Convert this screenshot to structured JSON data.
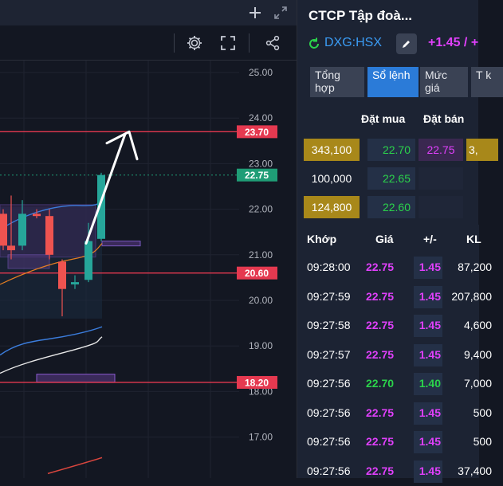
{
  "chart": {
    "price_axis_labels": [
      "25.00",
      "24.00",
      "23.00",
      "22.00",
      "21.00",
      "20.00",
      "19.00",
      "18.00",
      "17.00"
    ],
    "resistance_label": "23.70",
    "current_price_label": "22.75",
    "support_label": "20.60",
    "lower_support_label": "18.20",
    "colors": {
      "up": "#26a69a",
      "down": "#ef5350",
      "line_red": "#e53950",
      "current": "#1f9d76",
      "band": "#3b7ddd"
    },
    "icons": [
      "plus-icon",
      "expand-icon",
      "gear-icon",
      "fullscreen-icon",
      "share-icon"
    ]
  },
  "stock": {
    "name": "CTCP Tập đoà...",
    "ticker": "DXG:HSX",
    "change": "+1.45 / +"
  },
  "tabs": [
    {
      "label": "Tổng hợp",
      "active": false
    },
    {
      "label": "Sổ lệnh",
      "active": true
    },
    {
      "label": "Mức giá",
      "active": false
    },
    {
      "label": "T k",
      "active": false
    }
  ],
  "orderbook": {
    "header_buy": "Đặt mua",
    "header_sell": "Đặt bán",
    "rows": [
      {
        "buy_vol": "343,100",
        "buy_price": "22.70",
        "sell_price": "22.75",
        "sell_vol": "3,"
      },
      {
        "buy_vol": "100,000",
        "buy_price": "22.65",
        "sell_price": "",
        "sell_vol": ""
      },
      {
        "buy_vol": "124,800",
        "buy_price": "22.60",
        "sell_price": "",
        "sell_vol": ""
      }
    ]
  },
  "trades": {
    "headers": {
      "time": "Khớp",
      "price": "Giá",
      "change": "+/-",
      "volume": "KL"
    },
    "rows": [
      {
        "time": "09:28:00",
        "price": "22.75",
        "change": "1.45",
        "volume": "87,200"
      },
      {
        "time": "09:27:59",
        "price": "22.75",
        "change": "1.45",
        "volume": "207,800"
      },
      {
        "time": "09:27:58",
        "price": "22.75",
        "change": "1.45",
        "volume": "4,600"
      },
      {
        "time": "09:27:57",
        "price": "22.75",
        "change": "1.45",
        "volume": "9,400"
      },
      {
        "time": "09:27:56",
        "price": "22.70",
        "change": "1.40",
        "volume": "7,000"
      },
      {
        "time": "09:27:56",
        "price": "22.75",
        "change": "1.45",
        "volume": "500"
      },
      {
        "time": "09:27:56",
        "price": "22.75",
        "change": "1.45",
        "volume": "500"
      },
      {
        "time": "09:27:56",
        "price": "22.75",
        "change": "1.45",
        "volume": "37,400"
      }
    ]
  }
}
